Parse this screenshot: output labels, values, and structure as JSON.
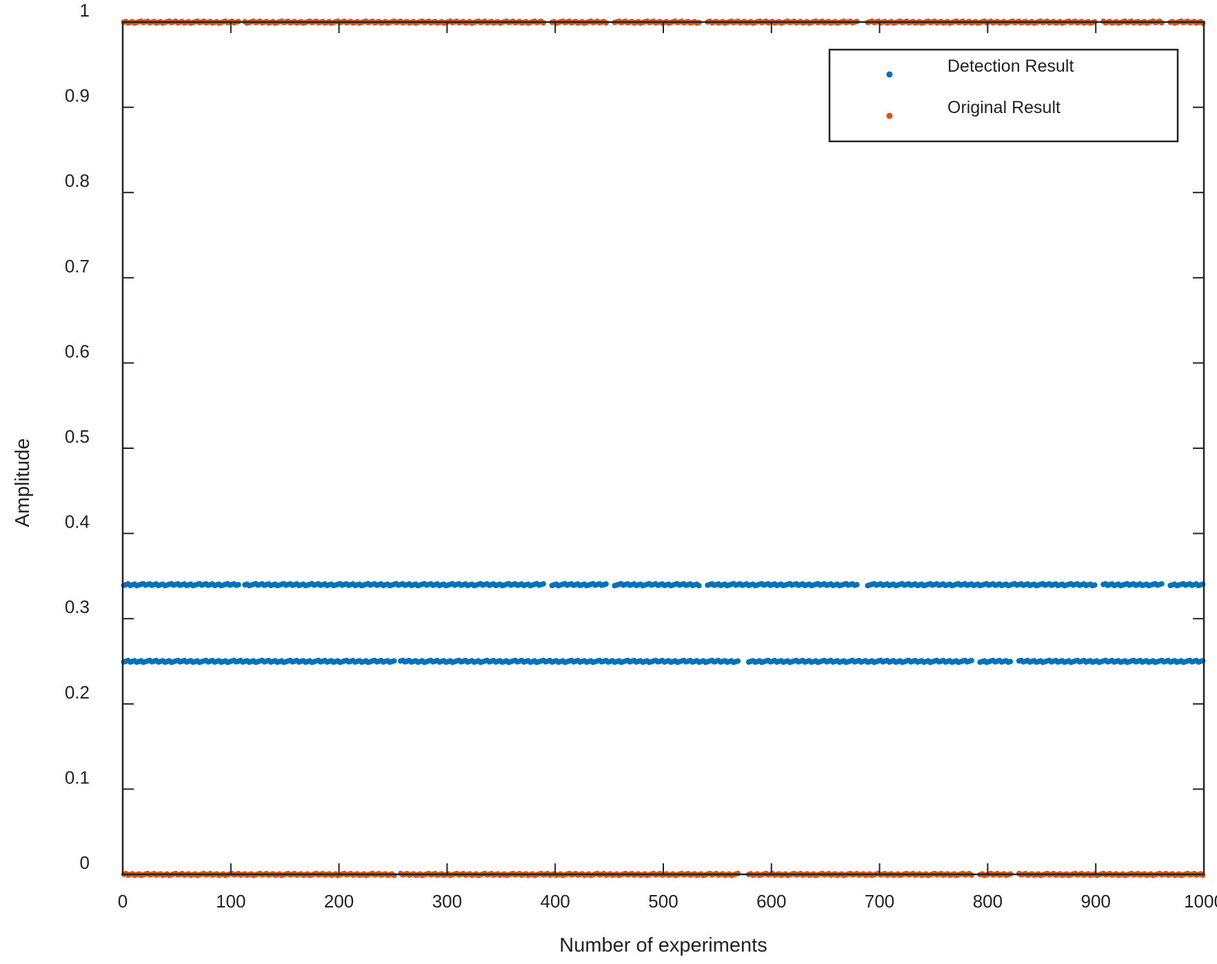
{
  "chart_data": {
    "type": "scatter",
    "title": "",
    "xlabel": "Number of experiments",
    "ylabel": "Amplitude",
    "xlim": [
      0,
      1000
    ],
    "ylim": [
      0,
      1
    ],
    "xticks": [
      "0",
      "100",
      "200",
      "300",
      "400",
      "500",
      "600",
      "700",
      "800",
      "900",
      "1000"
    ],
    "yticks": [
      "0",
      "0.1",
      "0.2",
      "0.3",
      "0.4",
      "0.5",
      "0.6",
      "0.7",
      "0.8",
      "0.9",
      "1"
    ],
    "grid": false,
    "legend_position": "top-right",
    "x_range": [
      1,
      1000
    ],
    "series": [
      {
        "name": "Detection Result",
        "color": "#0072BD",
        "bands": [
          {
            "y": 0.34,
            "x_gaps": [
              [
                108,
                112
              ],
              [
                390,
                395
              ],
              [
                448,
                453
              ],
              [
                535,
                540
              ],
              [
                680,
                688
              ],
              [
                900,
                905
              ],
              [
                963,
                968
              ]
            ]
          },
          {
            "y": 0.25,
            "x_gaps": [
              [
                252,
                256
              ],
              [
                570,
                578
              ],
              [
                787,
                792
              ],
              [
                822,
                828
              ]
            ]
          }
        ]
      },
      {
        "name": "Original Result",
        "color": "#D95319",
        "bands": [
          {
            "y": 1.0,
            "x_gaps": [
              [
                108,
                112
              ],
              [
                390,
                395
              ],
              [
                448,
                453
              ],
              [
                535,
                540
              ],
              [
                680,
                688
              ],
              [
                900,
                905
              ],
              [
                963,
                968
              ]
            ]
          },
          {
            "y": 0.0,
            "x_gaps": [
              [
                252,
                256
              ],
              [
                570,
                578
              ],
              [
                787,
                792
              ],
              [
                822,
                828
              ]
            ]
          }
        ]
      }
    ]
  }
}
